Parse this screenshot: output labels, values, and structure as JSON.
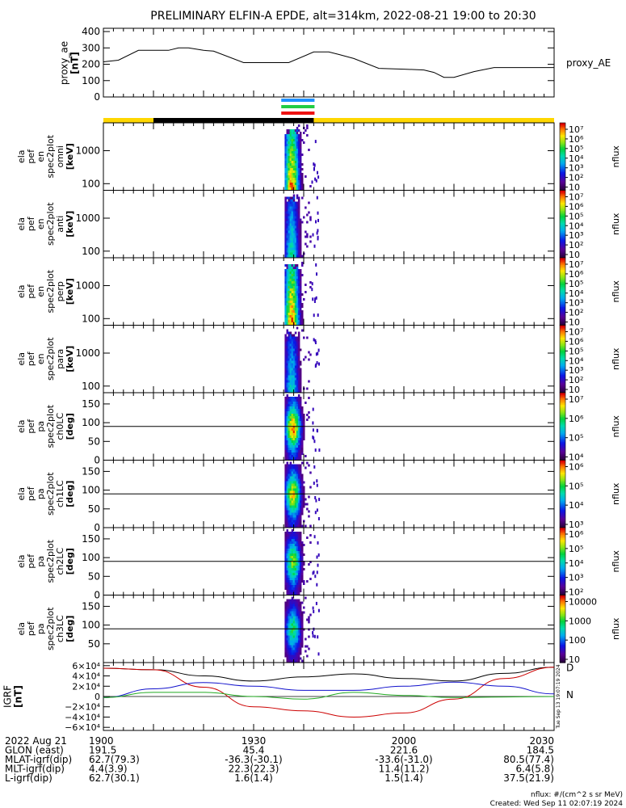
{
  "title": "PRELIMINARY ELFIN-A EPDE, alt=314km, 2022-08-21 19:00 to 20:30",
  "chart_data": {
    "type": "line",
    "time_range": [
      "2022-08-21 19:00",
      "2022-08-21 20:30"
    ],
    "x_tick_labels": [
      "1900",
      "1930",
      "2000",
      "2030"
    ],
    "proxy_ae": {
      "ylabel": [
        "proxy_ae",
        "[nT]"
      ],
      "legend": "proxy_AE",
      "ylim": [
        0,
        420
      ],
      "yticks": [
        "0",
        "100",
        "200",
        "300",
        "400"
      ],
      "series": [
        {
          "name": "proxy_AE",
          "x_min": [
            0,
            3,
            7,
            10,
            13,
            15,
            17,
            20,
            22,
            28,
            30,
            35,
            37,
            42,
            45,
            47,
            50,
            55,
            60,
            64,
            66,
            68,
            70,
            74,
            78,
            80,
            84,
            90
          ],
          "y": [
            215,
            225,
            285,
            285,
            285,
            300,
            300,
            285,
            280,
            210,
            210,
            210,
            210,
            275,
            275,
            260,
            235,
            175,
            170,
            165,
            150,
            120,
            120,
            155,
            180,
            180,
            180,
            180
          ]
        }
      ]
    },
    "status_bar": {
      "colors": {
        "yellow": "#ffd700",
        "black": "#000000"
      },
      "black_span_min": [
        10,
        42
      ],
      "markers": [
        {
          "color": "#1e90ff",
          "span_min": [
            36,
            42
          ]
        },
        {
          "color": "#22cc44",
          "span_min": [
            36,
            42
          ]
        },
        {
          "color": "#ee1111",
          "span_min": [
            36,
            42
          ]
        }
      ]
    },
    "spectrograms": [
      {
        "ylabel": [
          "ela",
          "pef",
          "en",
          "spec2plot",
          "omni",
          "[keV]"
        ],
        "yticks": [
          "1000",
          "100"
        ],
        "ytick_vals": [
          1000,
          100
        ],
        "ylim": [
          63,
          7000
        ],
        "log": true,
        "cb_title": "nflux",
        "cb_ticks": [
          "10⁷",
          "10⁶",
          "10⁵",
          "10⁴",
          "10³",
          "10²",
          "10"
        ],
        "intensity": 0.95,
        "kind": "energy"
      },
      {
        "ylabel": [
          "ela",
          "pef",
          "en",
          "spec2plot",
          "anti",
          "[keV]"
        ],
        "yticks": [
          "1000",
          "100"
        ],
        "ytick_vals": [
          1000,
          100
        ],
        "ylim": [
          63,
          7000
        ],
        "log": true,
        "cb_title": "nflux",
        "cb_ticks": [
          "10⁷",
          "10⁶",
          "10⁵",
          "10⁴",
          "10³",
          "10²",
          "10"
        ],
        "intensity": 0.55,
        "kind": "energy"
      },
      {
        "ylabel": [
          "ela",
          "pef",
          "en",
          "spec2plot",
          "perp",
          "[keV]"
        ],
        "yticks": [
          "1000",
          "100"
        ],
        "ytick_vals": [
          1000,
          100
        ],
        "ylim": [
          63,
          7000
        ],
        "log": true,
        "cb_title": "nflux",
        "cb_ticks": [
          "10⁷",
          "10⁶",
          "10⁵",
          "10⁴",
          "10³",
          "10²",
          "10"
        ],
        "intensity": 0.97,
        "kind": "energy"
      },
      {
        "ylabel": [
          "ela",
          "pef",
          "en",
          "spec2plot",
          "para",
          "[keV]"
        ],
        "yticks": [
          "1000",
          "100"
        ],
        "ytick_vals": [
          1000,
          100
        ],
        "ylim": [
          63,
          7000
        ],
        "log": true,
        "cb_title": "nflux",
        "cb_ticks": [
          "10⁷",
          "10⁶",
          "10⁵",
          "10⁴",
          "10³",
          "10²",
          "10"
        ],
        "intensity": 0.5,
        "kind": "energy"
      },
      {
        "ylabel": [
          "ela",
          "pef",
          "pa",
          "spec2plot",
          "ch0LC",
          "[deg]"
        ],
        "yticks": [
          "150",
          "100",
          "50",
          "0"
        ],
        "ytick_vals": [
          150,
          100,
          50,
          0
        ],
        "ylim": [
          0,
          180
        ],
        "log": false,
        "hline": 90,
        "cb_title": "nflux",
        "cb_ticks": [
          "10⁷",
          "10⁶",
          "10⁵",
          "10⁴"
        ],
        "intensity": 0.9,
        "kind": "pitch"
      },
      {
        "ylabel": [
          "ela",
          "pef",
          "pa",
          "spec2plot",
          "ch1LC",
          "[deg]"
        ],
        "yticks": [
          "150",
          "100",
          "50",
          "0"
        ],
        "ytick_vals": [
          150,
          100,
          50,
          0
        ],
        "ylim": [
          0,
          180
        ],
        "log": false,
        "hline": 90,
        "cb_title": "nflux",
        "cb_ticks": [
          "10⁶",
          "10⁵",
          "10⁴",
          "10³"
        ],
        "intensity": 0.8,
        "kind": "pitch"
      },
      {
        "ylabel": [
          "ela",
          "pef",
          "pa",
          "spec2plot",
          "ch2LC",
          "[deg]"
        ],
        "yticks": [
          "150",
          "100",
          "50",
          "0"
        ],
        "ytick_vals": [
          150,
          100,
          50,
          0
        ],
        "ylim": [
          0,
          180
        ],
        "log": false,
        "hline": 90,
        "cb_title": "nflux",
        "cb_ticks": [
          "10⁶",
          "10⁵",
          "10⁴",
          "10³",
          "10²"
        ],
        "intensity": 0.7,
        "kind": "pitch"
      },
      {
        "ylabel": [
          "ela",
          "pef",
          "pa",
          "spec2plot",
          "ch3LC",
          "[deg]"
        ],
        "yticks": [
          "150",
          "100",
          "50"
        ],
        "ytick_vals": [
          150,
          100,
          50
        ],
        "ylim": [
          0,
          180
        ],
        "log": false,
        "hline": 90,
        "cb_title": "nflux",
        "cb_ticks": [
          "10000",
          "1000",
          "100",
          "10"
        ],
        "intensity": 0.6,
        "kind": "pitch"
      }
    ],
    "igrf": {
      "ylabel": [
        "IGRF",
        "[nT]"
      ],
      "ylim": [
        -66000,
        66000
      ],
      "yticks": [
        "6×10⁴",
        "4×10⁴",
        "2×10⁴",
        "0",
        "−2×10⁴",
        "−4×10⁴",
        "−6×10⁴"
      ],
      "ytick_vals": [
        60000,
        40000,
        20000,
        0,
        -20000,
        -40000,
        -60000
      ],
      "side_note": "Tue Sep 13 19:07:19 2024",
      "series": [
        {
          "name": "total",
          "color": "#000000",
          "x_min": [
            0,
            10,
            20,
            30,
            40,
            50,
            60,
            70,
            80,
            90
          ],
          "y": [
            55000,
            52000,
            40000,
            30000,
            38000,
            44000,
            35000,
            30000,
            45000,
            57000
          ]
        },
        {
          "name": "D",
          "label": "D",
          "color": "#cc0000",
          "x_min": [
            0,
            10,
            20,
            30,
            40,
            50,
            60,
            70,
            80,
            90
          ],
          "y": [
            55000,
            52000,
            18000,
            -20000,
            -28000,
            -40000,
            -32000,
            -5000,
            35000,
            57000
          ]
        },
        {
          "name": "N",
          "label": "N",
          "color": "#1010cc",
          "x_min": [
            0,
            10,
            20,
            30,
            40,
            50,
            60,
            70,
            80,
            90
          ],
          "y": [
            -2000,
            15000,
            27000,
            20000,
            12000,
            12000,
            20000,
            28000,
            20000,
            5000
          ]
        },
        {
          "name": "green",
          "color": "#22aa22",
          "x_min": [
            0,
            10,
            20,
            30,
            40,
            50,
            60,
            70,
            80,
            90
          ],
          "y": [
            -2000,
            8000,
            8000,
            0,
            -5000,
            8000,
            2000,
            -2000,
            -1000,
            0
          ]
        }
      ]
    },
    "footer": {
      "rows": [
        {
          "label": "2022 Aug 21",
          "values": [
            "1900",
            "1930",
            "2000",
            "2030"
          ]
        },
        {
          "label": "GLON (east)",
          "values": [
            "191.5",
            "45.4",
            "221.6",
            "184.5"
          ]
        },
        {
          "label": "MLAT-igrf(dip)",
          "values": [
            "62.7(79.3)",
            "-36.3(-30.1)",
            "-33.6(-31.0)",
            "80.5(77.4)"
          ]
        },
        {
          "label": "MLT-igrf(dip)",
          "values": [
            "4.4(3.9)",
            "22.3(22.3)",
            "11.4(11.2)",
            "6.4(5.8)"
          ]
        },
        {
          "label": "L-igrf(dip)",
          "values": [
            "62.7(30.1)",
            "1.6(1.4)",
            "1.5(1.4)",
            "37.5(21.9)"
          ]
        }
      ],
      "units_note": "nflux: #/(cm^2 s sr MeV)",
      "created_note": "Created: Wed Sep 11 02:07:19 2024"
    }
  }
}
